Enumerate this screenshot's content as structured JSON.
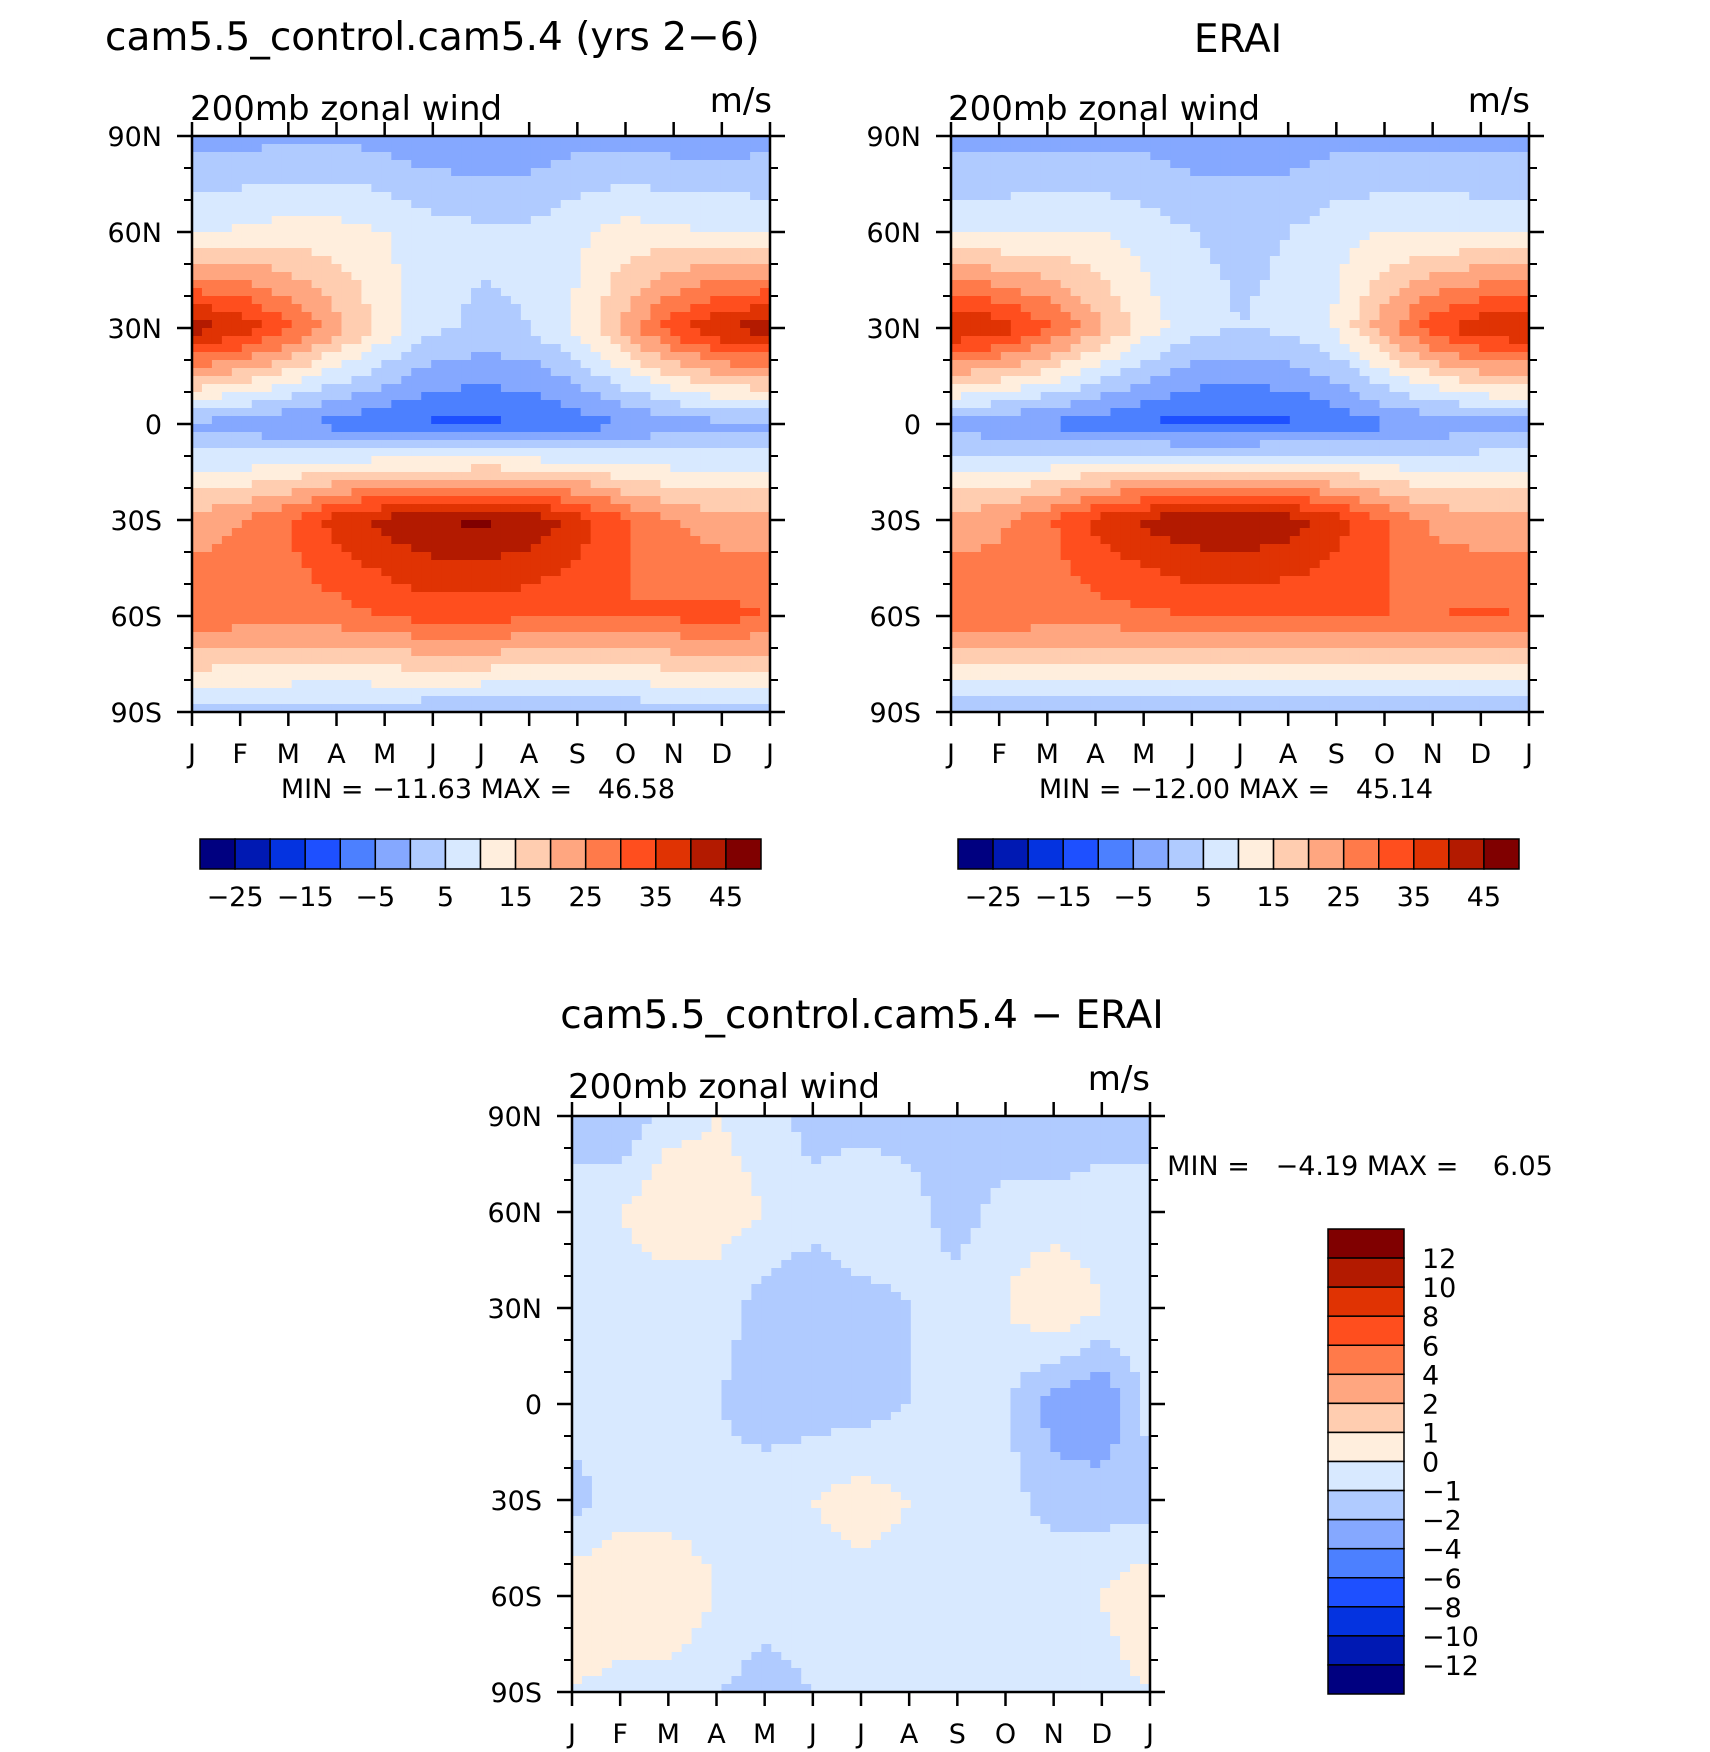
{
  "panels": [
    {
      "title": "cam5.5_control.cam5.4 (yrs 2−6)",
      "subtitle": "200mb zonal wind",
      "units": "m/s",
      "minmax": "MIN = −11.63 MAX =   46.58"
    },
    {
      "title": "ERAI",
      "subtitle": "200mb zonal wind",
      "units": "m/s",
      "minmax": "MIN = −12.00 MAX =   45.14"
    },
    {
      "title": "cam5.5_control.cam5.4 − ERAI",
      "subtitle": "200mb zonal wind",
      "units": "m/s",
      "minmax": "MIN =   −4.19 MAX =    6.05"
    }
  ],
  "month_labels": [
    "J",
    "F",
    "M",
    "A",
    "M",
    "J",
    "J",
    "A",
    "S",
    "O",
    "N",
    "D",
    "J"
  ],
  "lat_labels": [
    "90N",
    "60N",
    "30N",
    "0",
    "30S",
    "60S",
    "90S"
  ],
  "colorbar_main": {
    "colors": [
      "#000080",
      "#0019b3",
      "#0433e0",
      "#1e50ff",
      "#4c80ff",
      "#85a8ff",
      "#b0cbff",
      "#d8e9ff",
      "#ffeedd",
      "#ffcdb0",
      "#ffa680",
      "#ff7a4a",
      "#ff4e1e",
      "#e03303",
      "#b31a00",
      "#800000"
    ],
    "labels": [
      "−25",
      "−15",
      "−5",
      "5",
      "15",
      "25",
      "35",
      "45"
    ]
  },
  "colorbar_diff": {
    "colors": [
      "#000080",
      "#0019b3",
      "#0433e0",
      "#1e50ff",
      "#4c80ff",
      "#85a8ff",
      "#b0cbff",
      "#d8e9ff",
      "#ffeedd",
      "#ffcdb0",
      "#ffa680",
      "#ff7a4a",
      "#ff4e1e",
      "#e03303",
      "#b31a00",
      "#800000"
    ],
    "labels": [
      "12",
      "10",
      "8",
      "6",
      "4",
      "2",
      "1",
      "0",
      "−1",
      "−2",
      "−4",
      "−6",
      "−8",
      "−10",
      "−12"
    ]
  },
  "chart_data": [
    {
      "type": "heatmap",
      "title": "cam5.5_control.cam5.4 (yrs 2−6)",
      "subtitle": "200mb zonal wind",
      "units": "m/s",
      "x": [
        "J",
        "F",
        "M",
        "A",
        "M",
        "J",
        "J",
        "A",
        "S",
        "O",
        "N",
        "D",
        "J"
      ],
      "y": [
        "90N",
        "60N",
        "30N",
        "0",
        "30S",
        "60S",
        "90S"
      ],
      "min": -11.63,
      "max": 46.58,
      "contour_levels": [
        -30,
        -25,
        -20,
        -15,
        -10,
        -5,
        0,
        5,
        10,
        15,
        20,
        25,
        30,
        35,
        40,
        45,
        50
      ],
      "values": [
        [
          -2,
          -2,
          -1,
          -1,
          -2,
          -4,
          -4,
          -4,
          -2,
          -2,
          -3,
          -3,
          -2
        ],
        [
          9,
          11,
          12,
          12,
          10,
          7,
          6,
          6,
          9,
          12,
          11,
          10,
          9
        ],
        [
          43,
          39,
          31,
          22,
          13,
          6,
          4,
          5,
          11,
          22,
          33,
          40,
          43
        ],
        [
          -1,
          -3,
          -5,
          -7,
          -9,
          -11,
          -11,
          -10,
          -8,
          -5,
          -3,
          -1,
          -1
        ],
        [
          22,
          25,
          30,
          37,
          42,
          45,
          46,
          44,
          38,
          30,
          25,
          22,
          22
        ],
        [
          30,
          28,
          27,
          28,
          30,
          32,
          32,
          31,
          30,
          30,
          31,
          32,
          30
        ],
        [
          3,
          3,
          3,
          2,
          2,
          1,
          1,
          0,
          0,
          1,
          2,
          3,
          3
        ]
      ]
    },
    {
      "type": "heatmap",
      "title": "ERAI",
      "subtitle": "200mb zonal wind",
      "units": "m/s",
      "x": [
        "J",
        "F",
        "M",
        "A",
        "M",
        "J",
        "J",
        "A",
        "S",
        "O",
        "N",
        "D",
        "J"
      ],
      "y": [
        "90N",
        "60N",
        "30N",
        "0",
        "30S",
        "60S",
        "90S"
      ],
      "min": -12.0,
      "max": 45.14,
      "contour_levels": [
        -30,
        -25,
        -20,
        -15,
        -10,
        -5,
        0,
        5,
        10,
        15,
        20,
        25,
        30,
        35,
        40,
        45,
        50
      ],
      "values": [
        [
          -2,
          -2,
          -2,
          -2,
          -2,
          -3,
          -3,
          -3,
          -2,
          -2,
          -2,
          -2,
          -2
        ],
        [
          9,
          9,
          10,
          10,
          8,
          5,
          4,
          5,
          8,
          10,
          10,
          9,
          9
        ],
        [
          41,
          38,
          31,
          22,
          13,
          7,
          5,
          6,
          11,
          23,
          33,
          39,
          41
        ],
        [
          -2,
          -4,
          -6,
          -8,
          -10,
          -12,
          -12,
          -11,
          -9,
          -6,
          -4,
          -2,
          -2
        ],
        [
          22,
          24,
          29,
          36,
          41,
          44,
          45,
          43,
          37,
          30,
          24,
          22,
          22
        ],
        [
          30,
          29,
          28,
          28,
          29,
          30,
          30,
          30,
          30,
          30,
          30,
          31,
          30
        ],
        [
          1,
          1,
          1,
          1,
          0,
          0,
          0,
          0,
          0,
          0,
          0,
          1,
          1
        ]
      ]
    },
    {
      "type": "heatmap",
      "title": "cam5.5_control.cam5.4 − ERAI",
      "subtitle": "200mb zonal wind",
      "units": "m/s",
      "x": [
        "J",
        "F",
        "M",
        "A",
        "M",
        "J",
        "J",
        "A",
        "S",
        "O",
        "N",
        "D",
        "J"
      ],
      "y": [
        "90N",
        "60N",
        "30N",
        "0",
        "30S",
        "60S",
        "90S"
      ],
      "min": -4.19,
      "max": 6.05,
      "contour_levels": [
        -12,
        -10,
        -8,
        -6,
        -4,
        -2,
        -1,
        0,
        1,
        2,
        4,
        6,
        8,
        10,
        12
      ],
      "values": [
        [
          -0.5,
          -1,
          0.5,
          1,
          0.5,
          -0.5,
          -0.5,
          -0.5,
          -1,
          -1,
          -1,
          -0.5,
          -0.5
        ],
        [
          0.5,
          1,
          2,
          1.5,
          1,
          0.5,
          1,
          0.5,
          -0.5,
          0.5,
          0.5,
          0.5,
          0.5
        ],
        [
          0.5,
          0.5,
          0,
          0.5,
          -0.5,
          -1,
          -0.5,
          0,
          0.5,
          1,
          2,
          1,
          0.5
        ],
        [
          0.5,
          0.5,
          0,
          0,
          -0.5,
          -0.5,
          -0.5,
          0,
          0.5,
          0,
          -1.5,
          -2,
          0.5
        ],
        [
          -0.5,
          0.5,
          0.5,
          0.5,
          0.5,
          1,
          1.5,
          1,
          1,
          0.5,
          -0.5,
          -0.5,
          -0.5
        ],
        [
          2,
          2,
          2,
          1,
          0.5,
          0.5,
          0.5,
          0.5,
          0,
          0.5,
          1,
          1,
          2
        ],
        [
          1,
          0.5,
          0.5,
          0,
          -0.5,
          0,
          0,
          0,
          0,
          0,
          0.5,
          0.5,
          1
        ]
      ]
    }
  ]
}
